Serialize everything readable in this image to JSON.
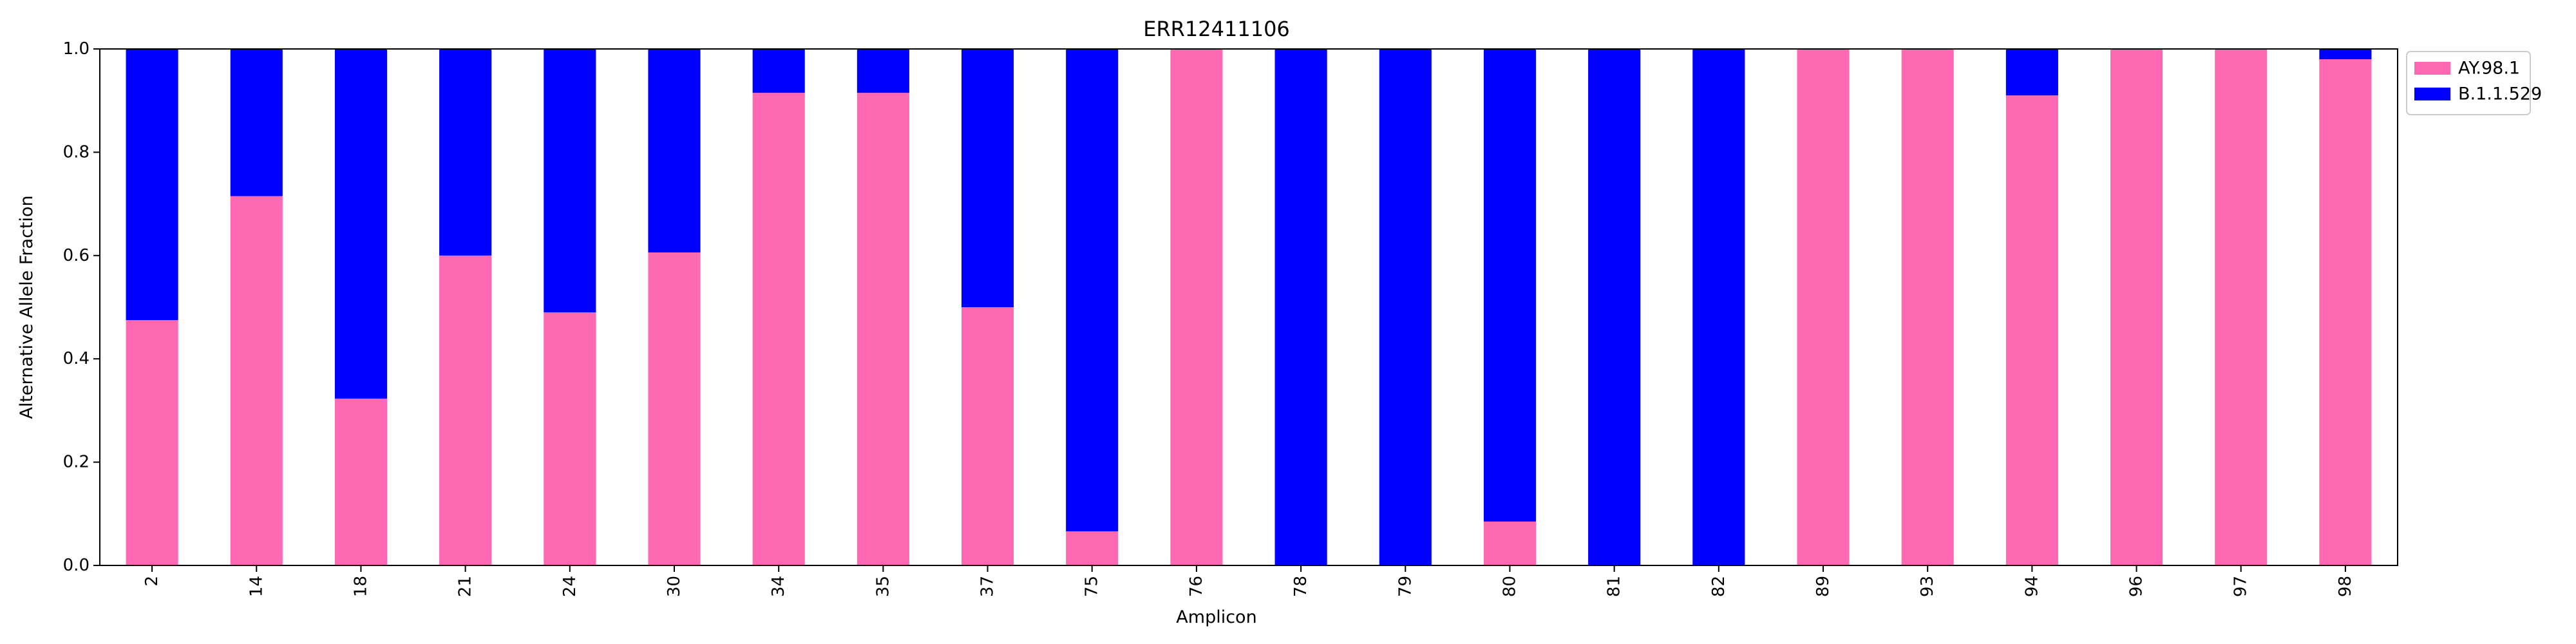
{
  "chart_data": {
    "type": "bar",
    "stacked": true,
    "title": "ERR12411106",
    "xlabel": "Amplicon",
    "ylabel": "Alternative Allele Fraction",
    "ylim": [
      0,
      1.0
    ],
    "yticks": [
      "0.0",
      "0.2",
      "0.4",
      "0.6",
      "0.8",
      "1.0"
    ],
    "categories": [
      "2",
      "14",
      "18",
      "21",
      "24",
      "30",
      "34",
      "35",
      "37",
      "75",
      "76",
      "78",
      "79",
      "80",
      "81",
      "82",
      "89",
      "93",
      "94",
      "96",
      "97",
      "98"
    ],
    "series": [
      {
        "name": "AY.98.1",
        "color": "#ff69b4",
        "values": [
          0.475,
          0.715,
          0.323,
          0.6,
          0.49,
          0.606,
          0.915,
          0.915,
          0.5,
          0.066,
          1.0,
          0.0,
          0.0,
          0.085,
          0.0,
          0.0,
          1.0,
          1.0,
          0.91,
          1.0,
          1.0,
          0.98
        ]
      },
      {
        "name": "B.1.1.529",
        "color": "#0000ff",
        "values": [
          0.525,
          0.285,
          0.677,
          0.4,
          0.51,
          0.394,
          0.085,
          0.085,
          0.5,
          0.934,
          0.0,
          1.0,
          1.0,
          0.915,
          1.0,
          1.0,
          0.0,
          0.0,
          0.09,
          0.0,
          0.0,
          0.02
        ]
      }
    ],
    "legend_position": "outside-top-right",
    "grid": false
  }
}
